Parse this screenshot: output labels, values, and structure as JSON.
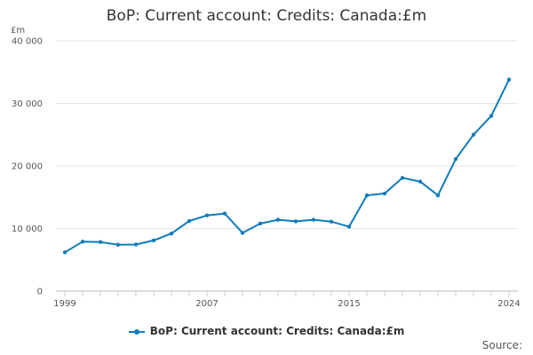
{
  "chart_data": {
    "type": "line",
    "title": "BoP: Current account: Credits: Canada:£m",
    "unit_label": "£m",
    "x": [
      1999,
      2000,
      2001,
      2002,
      2003,
      2004,
      2005,
      2006,
      2007,
      2008,
      2009,
      2010,
      2011,
      2012,
      2013,
      2014,
      2015,
      2016,
      2017,
      2018,
      2019,
      2020,
      2021,
      2022,
      2023,
      2024
    ],
    "x_tick_labels": [
      "1999",
      "2007",
      "2015",
      "2024"
    ],
    "y_ticks": [
      0,
      10000,
      20000,
      30000,
      40000
    ],
    "y_tick_labels": [
      "0",
      "10 000",
      "20 000",
      "30 000",
      "40 000"
    ],
    "ylim": [
      0,
      40000
    ],
    "grid": true,
    "legend_position": "bottom",
    "series": [
      {
        "name": "BoP: Current account: Credits: Canada:£m",
        "color": "#0f7cba",
        "values": [
          6200,
          7900,
          7850,
          7400,
          7450,
          8100,
          9200,
          11200,
          12100,
          12400,
          9300,
          10800,
          11400,
          11150,
          11400,
          11100,
          10300,
          15300,
          15600,
          18100,
          17500,
          15300,
          21100,
          25000,
          28000,
          33800
        ]
      }
    ]
  },
  "legend": {
    "label": "BoP: Current account: Credits: Canada:£m"
  },
  "source": {
    "label": "Source:"
  }
}
